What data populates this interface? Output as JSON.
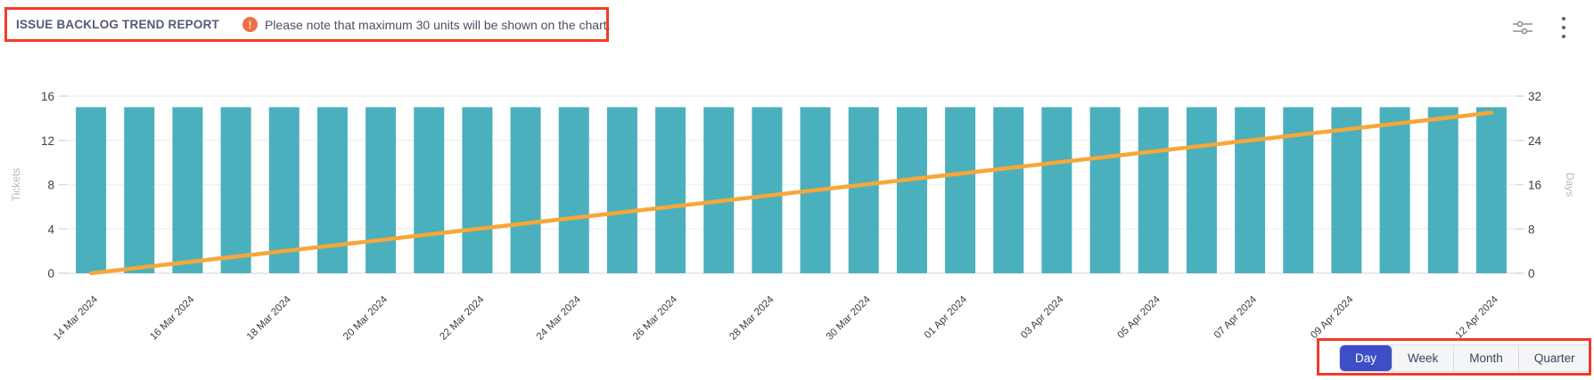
{
  "header": {
    "title": "ISSUE BACKLOG TREND REPORT",
    "note_icon": "alert-circle-icon",
    "note": "Please note that maximum 30 units will be shown on the chart."
  },
  "toolbar": {
    "icons": [
      "filter-sliders-icon",
      "kebab-menu-icon"
    ]
  },
  "annotations": {
    "color": "#f23b27",
    "boxes": [
      "report-title-and-note",
      "time-range-buttons"
    ]
  },
  "time_range": {
    "options": [
      "Day",
      "Week",
      "Month",
      "Quarter"
    ],
    "selected": "Day",
    "active_color": "#3d4ec6"
  },
  "chart_data": {
    "type": "bar+line",
    "grid": true,
    "x_range": {
      "start": "14 Mar 2024",
      "end": "12 Apr 2024"
    },
    "bars": {
      "name": "Tickets",
      "count": 30,
      "value_each": 15,
      "color": "#4bb0bd"
    },
    "line": {
      "name": "Days",
      "color": "#f7a738",
      "points": [
        {
          "index": 0,
          "value": 0
        },
        {
          "index": 29,
          "value": 29
        }
      ]
    },
    "y_left": {
      "title": "Tickets",
      "min": 0,
      "max": 16,
      "ticks": [
        "0",
        "4",
        "8",
        "12",
        "16"
      ]
    },
    "y_right": {
      "title": "Days",
      "min": 0,
      "max": 32,
      "ticks": [
        "0",
        "8",
        "16",
        "24",
        "32"
      ]
    },
    "x_tick_labels": [
      {
        "index": 0,
        "label": "14 Mar 2024"
      },
      {
        "index": 2,
        "label": "16 Mar 2024"
      },
      {
        "index": 4,
        "label": "18 Mar 2024"
      },
      {
        "index": 6,
        "label": "20 Mar 2024"
      },
      {
        "index": 8,
        "label": "22 Mar 2024"
      },
      {
        "index": 10,
        "label": "24 Mar 2024"
      },
      {
        "index": 12,
        "label": "26 Mar 2024"
      },
      {
        "index": 14,
        "label": "28 Mar 2024"
      },
      {
        "index": 16,
        "label": "30 Mar 2024"
      },
      {
        "index": 18,
        "label": "01 Apr 2024"
      },
      {
        "index": 20,
        "label": "03 Apr 2024"
      },
      {
        "index": 22,
        "label": "05 Apr 2024"
      },
      {
        "index": 24,
        "label": "07 Apr 2024"
      },
      {
        "index": 26,
        "label": "09 Apr 2024"
      },
      {
        "index": 29,
        "label": "12 Apr 2024"
      }
    ]
  }
}
